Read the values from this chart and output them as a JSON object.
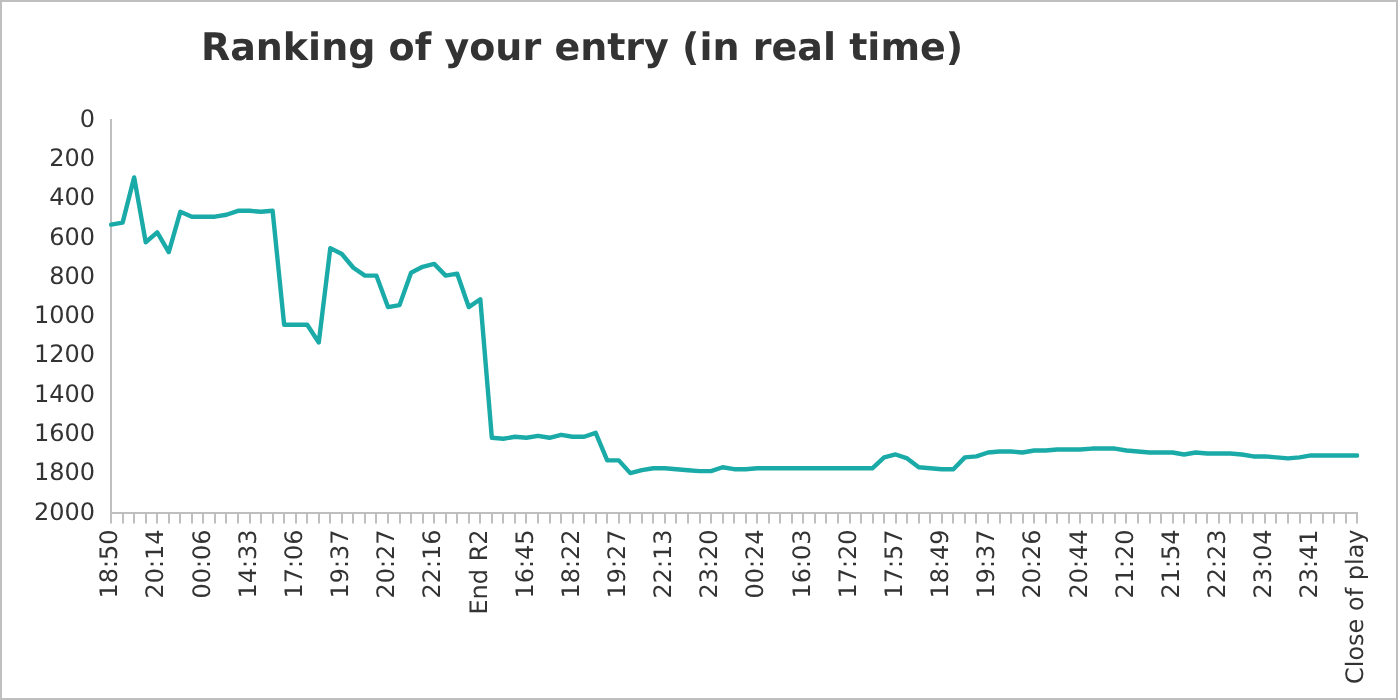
{
  "chart_data": {
    "type": "line",
    "title": "Ranking of your entry (in real time)",
    "categories": [
      "18:50",
      null,
      null,
      null,
      "20:14",
      null,
      null,
      null,
      "00:06",
      null,
      null,
      null,
      "14:33",
      null,
      null,
      null,
      "17:06",
      null,
      null,
      null,
      "19:37",
      null,
      null,
      null,
      "20:27",
      null,
      null,
      null,
      "22:16",
      null,
      null,
      null,
      "End R2",
      null,
      null,
      null,
      "16:45",
      null,
      null,
      null,
      "18:22",
      null,
      null,
      null,
      "19:27",
      null,
      null,
      null,
      "22:13",
      null,
      null,
      null,
      "23:20",
      null,
      null,
      null,
      "00:24",
      null,
      null,
      null,
      "16:03",
      null,
      null,
      null,
      "17:20",
      null,
      null,
      null,
      "17:57",
      null,
      null,
      null,
      "18:49",
      null,
      null,
      null,
      "19:37",
      null,
      null,
      null,
      "20:26",
      null,
      null,
      null,
      "20:44",
      null,
      null,
      null,
      "21:20",
      null,
      null,
      null,
      "21:54",
      null,
      null,
      null,
      "22:23",
      null,
      null,
      null,
      "23:04",
      null,
      null,
      null,
      "23:41",
      null,
      null,
      null,
      "Close of play"
    ],
    "series": [
      {
        "color": "#1aaba8",
        "values": [
          530,
          520,
          290,
          620,
          570,
          670,
          465,
          490,
          490,
          490,
          480,
          460,
          460,
          465,
          460,
          1040,
          1040,
          1040,
          1130,
          650,
          680,
          750,
          790,
          790,
          950,
          940,
          775,
          745,
          730,
          790,
          780,
          950,
          910,
          1615,
          1620,
          1610,
          1615,
          1605,
          1615,
          1600,
          1610,
          1610,
          1590,
          1730,
          1730,
          1795,
          1780,
          1770,
          1770,
          1775,
          1780,
          1785,
          1785,
          1765,
          1775,
          1775,
          1770,
          1770,
          1770,
          1770,
          1770,
          1770,
          1770,
          1770,
          1770,
          1770,
          1770,
          1715,
          1700,
          1720,
          1765,
          1770,
          1775,
          1775,
          1715,
          1710,
          1690,
          1685,
          1685,
          1690,
          1680,
          1680,
          1675,
          1675,
          1675,
          1670,
          1670,
          1670,
          1680,
          1685,
          1690,
          1690,
          1690,
          1700,
          1690,
          1695,
          1695,
          1695,
          1700,
          1710,
          1710,
          1715,
          1720,
          1715,
          1705,
          1705,
          1705,
          1705,
          1705
        ]
      }
    ],
    "ylim": [
      2000,
      0
    ],
    "yticks": [
      0,
      200,
      400,
      600,
      800,
      1000,
      1200,
      1400,
      1600,
      1800,
      2000
    ],
    "grid": false,
    "legend": false,
    "marker": "none",
    "line_style": "solid"
  }
}
